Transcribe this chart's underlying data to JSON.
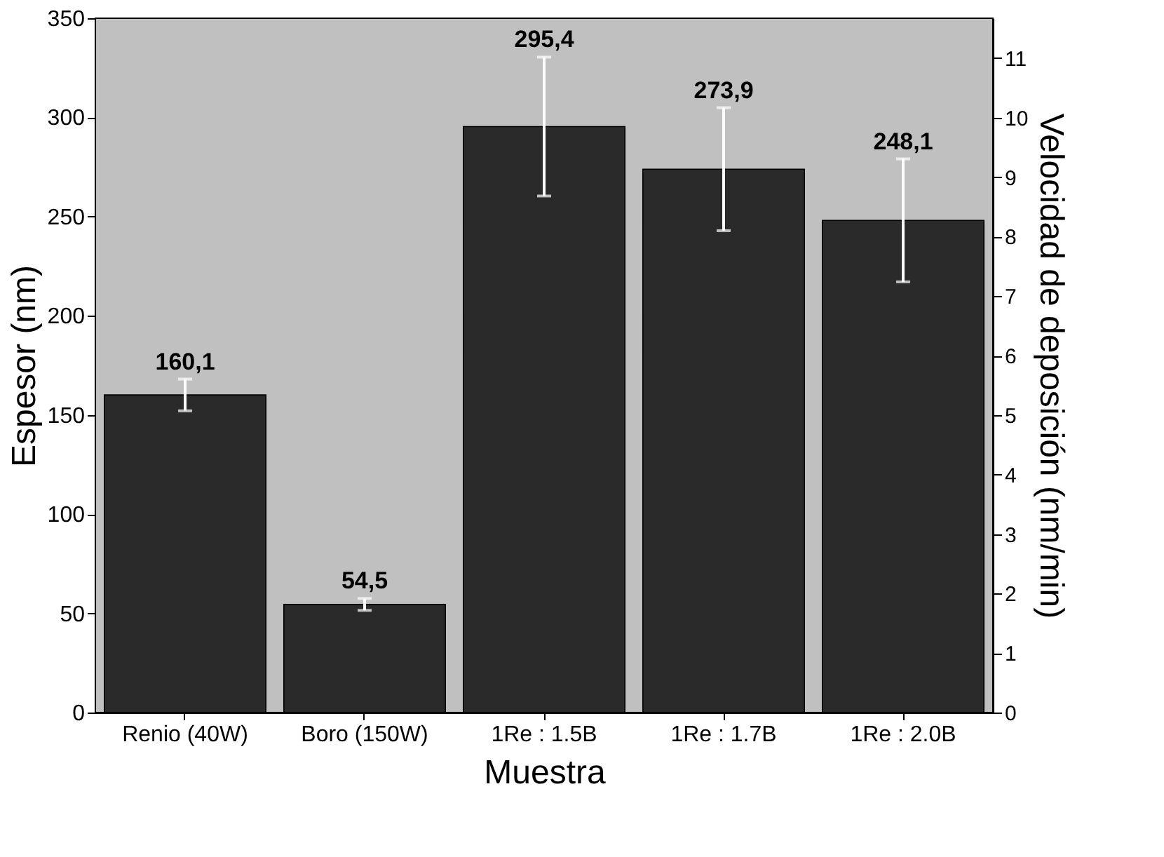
{
  "chart_data": {
    "type": "bar",
    "xlabel": "Muestra",
    "ylabel": "Espesor (nm)",
    "y2label": "Velocidad de deposición (nm/min)",
    "categories": [
      "Renio (40W)",
      "Boro (150W)",
      "1Re : 1.5B",
      "1Re : 1.7B",
      "1Re : 2.0B"
    ],
    "values": [
      160.1,
      54.5,
      295.4,
      273.9,
      248.1
    ],
    "errors": [
      8,
      3,
      35,
      31,
      31
    ],
    "value_labels": [
      "160,1",
      "54,5",
      "295,4",
      "273,9",
      "248,1"
    ],
    "color": "#2a2a2a",
    "ylim": [
      0,
      350
    ],
    "yticks": [
      0,
      50,
      100,
      150,
      200,
      250,
      300,
      350
    ],
    "y2ticks": [
      0,
      1,
      2,
      3,
      4,
      5,
      6,
      7,
      8,
      9,
      10,
      11
    ],
    "y2lim": [
      0,
      11.67
    ]
  }
}
